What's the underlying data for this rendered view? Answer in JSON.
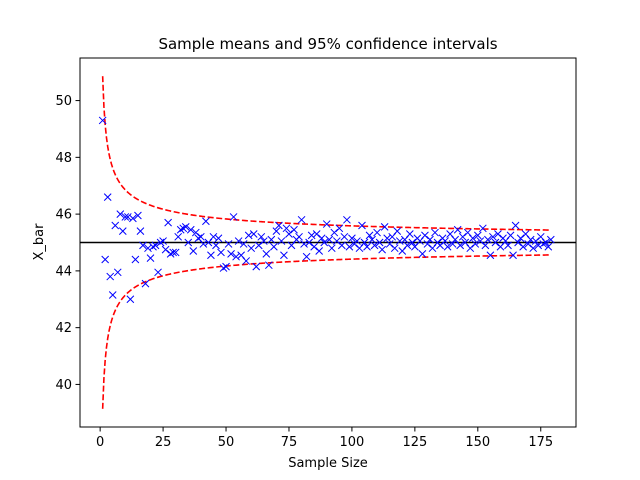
{
  "chart_data": {
    "type": "scatter",
    "title": "Sample means and 95% confidence intervals",
    "xlabel": "Sample Size",
    "ylabel": "X_bar",
    "xlim": [
      -8,
      189
    ],
    "ylim": [
      38.5,
      51.5
    ],
    "xticks": [
      0,
      25,
      50,
      75,
      100,
      125,
      150,
      175
    ],
    "yticks": [
      40,
      42,
      44,
      46,
      48,
      50
    ],
    "grid": false,
    "legend": "none",
    "reference_line": {
      "y": 45,
      "color": "#000000",
      "style": "solid"
    },
    "confidence_band": {
      "color": "#ff0000",
      "style": "dashed",
      "center": 45,
      "coefficient": 5.86,
      "n_range": [
        1,
        179
      ]
    },
    "series": [
      {
        "marker": "x",
        "color": "#0000ff",
        "points": [
          [
            1,
            49.3
          ],
          [
            2,
            44.4
          ],
          [
            3,
            46.6
          ],
          [
            4,
            43.8
          ],
          [
            5,
            43.15
          ],
          [
            6,
            45.6
          ],
          [
            7,
            43.95
          ],
          [
            8,
            46.0
          ],
          [
            9,
            45.4
          ],
          [
            10,
            45.9
          ],
          [
            11,
            45.9
          ],
          [
            12,
            43.0
          ],
          [
            13,
            45.85
          ],
          [
            14,
            44.4
          ],
          [
            15,
            45.95
          ],
          [
            16,
            45.4
          ],
          [
            17,
            44.9
          ],
          [
            18,
            43.55
          ],
          [
            19,
            44.8
          ],
          [
            20,
            44.45
          ],
          [
            21,
            44.85
          ],
          [
            22,
            44.9
          ],
          [
            23,
            43.95
          ],
          [
            24,
            45.0
          ],
          [
            25,
            45.05
          ],
          [
            26,
            44.75
          ],
          [
            27,
            45.7
          ],
          [
            28,
            44.6
          ],
          [
            29,
            44.65
          ],
          [
            30,
            44.65
          ],
          [
            31,
            45.2
          ],
          [
            32,
            45.45
          ],
          [
            33,
            45.5
          ],
          [
            34,
            45.55
          ],
          [
            35,
            45.0
          ],
          [
            36,
            45.45
          ],
          [
            37,
            44.7
          ],
          [
            38,
            45.35
          ],
          [
            39,
            45.15
          ],
          [
            40,
            45.2
          ],
          [
            41,
            44.95
          ],
          [
            42,
            45.75
          ],
          [
            43,
            45.0
          ],
          [
            44,
            44.55
          ],
          [
            45,
            45.2
          ],
          [
            46,
            44.9
          ],
          [
            47,
            45.15
          ],
          [
            48,
            44.65
          ],
          [
            49,
            44.1
          ],
          [
            50,
            44.15
          ],
          [
            51,
            44.95
          ],
          [
            52,
            44.6
          ],
          [
            53,
            45.9
          ],
          [
            54,
            44.5
          ],
          [
            55,
            45.05
          ],
          [
            56,
            44.55
          ],
          [
            57,
            44.95
          ],
          [
            58,
            44.35
          ],
          [
            59,
            45.25
          ],
          [
            60,
            44.8
          ],
          [
            61,
            45.3
          ],
          [
            62,
            44.15
          ],
          [
            63,
            44.9
          ],
          [
            64,
            45.2
          ],
          [
            65,
            45.05
          ],
          [
            66,
            44.6
          ],
          [
            67,
            44.2
          ],
          [
            68,
            45.1
          ],
          [
            69,
            44.85
          ],
          [
            70,
            45.4
          ],
          [
            71,
            45.6
          ],
          [
            72,
            45.05
          ],
          [
            73,
            44.55
          ],
          [
            74,
            45.5
          ],
          [
            75,
            45.3
          ],
          [
            76,
            44.9
          ],
          [
            77,
            45.45
          ],
          [
            78,
            45.1
          ],
          [
            79,
            45.2
          ],
          [
            80,
            45.8
          ],
          [
            81,
            44.95
          ],
          [
            82,
            44.5
          ],
          [
            83,
            45.0
          ],
          [
            84,
            45.25
          ],
          [
            85,
            44.85
          ],
          [
            86,
            45.3
          ],
          [
            87,
            44.7
          ],
          [
            88,
            45.15
          ],
          [
            89,
            45.0
          ],
          [
            90,
            45.65
          ],
          [
            91,
            45.1
          ],
          [
            92,
            44.8
          ],
          [
            93,
            45.35
          ],
          [
            94,
            45.05
          ],
          [
            95,
            45.5
          ],
          [
            96,
            44.9
          ],
          [
            97,
            45.2
          ],
          [
            98,
            45.8
          ],
          [
            99,
            44.85
          ],
          [
            100,
            45.15
          ],
          [
            101,
            44.95
          ],
          [
            102,
            45.05
          ],
          [
            103,
            44.8
          ],
          [
            104,
            45.6
          ],
          [
            105,
            45.0
          ],
          [
            106,
            44.85
          ],
          [
            107,
            45.25
          ],
          [
            108,
            45.1
          ],
          [
            109,
            44.9
          ],
          [
            110,
            45.35
          ],
          [
            111,
            45.0
          ],
          [
            112,
            44.75
          ],
          [
            113,
            45.55
          ],
          [
            114,
            45.15
          ],
          [
            115,
            44.95
          ],
          [
            116,
            45.2
          ],
          [
            117,
            44.8
          ],
          [
            118,
            45.4
          ],
          [
            119,
            45.05
          ],
          [
            120,
            44.7
          ],
          [
            121,
            45.1
          ],
          [
            122,
            44.9
          ],
          [
            123,
            45.3
          ],
          [
            124,
            45.0
          ],
          [
            125,
            44.85
          ],
          [
            126,
            45.15
          ],
          [
            127,
            45.05
          ],
          [
            128,
            44.6
          ],
          [
            129,
            45.25
          ],
          [
            130,
            44.95
          ],
          [
            131,
            45.1
          ],
          [
            132,
            44.8
          ],
          [
            133,
            45.35
          ],
          [
            134,
            45.0
          ],
          [
            135,
            44.9
          ],
          [
            136,
            45.15
          ],
          [
            137,
            45.05
          ],
          [
            138,
            44.85
          ],
          [
            139,
            45.3
          ],
          [
            140,
            44.95
          ],
          [
            141,
            45.1
          ],
          [
            142,
            45.45
          ],
          [
            143,
            44.9
          ],
          [
            144,
            45.2
          ],
          [
            145,
            45.0
          ],
          [
            146,
            45.35
          ],
          [
            147,
            44.8
          ],
          [
            148,
            45.15
          ],
          [
            149,
            44.95
          ],
          [
            150,
            45.25
          ],
          [
            151,
            45.05
          ],
          [
            152,
            45.5
          ],
          [
            153,
            44.9
          ],
          [
            154,
            45.1
          ],
          [
            155,
            44.55
          ],
          [
            156,
            45.2
          ],
          [
            157,
            45.0
          ],
          [
            158,
            45.3
          ],
          [
            159,
            44.85
          ],
          [
            160,
            45.15
          ],
          [
            161,
            45.05
          ],
          [
            162,
            44.9
          ],
          [
            163,
            45.25
          ],
          [
            164,
            44.55
          ],
          [
            165,
            45.6
          ],
          [
            166,
            45.0
          ],
          [
            167,
            45.15
          ],
          [
            168,
            44.85
          ],
          [
            169,
            45.3
          ],
          [
            170,
            44.95
          ],
          [
            171,
            45.1
          ],
          [
            172,
            44.8
          ],
          [
            173,
            45.05
          ],
          [
            174,
            44.9
          ],
          [
            175,
            45.2
          ],
          [
            176,
            44.95
          ],
          [
            177,
            45.0
          ],
          [
            178,
            44.85
          ],
          [
            179,
            45.1
          ]
        ]
      }
    ]
  }
}
